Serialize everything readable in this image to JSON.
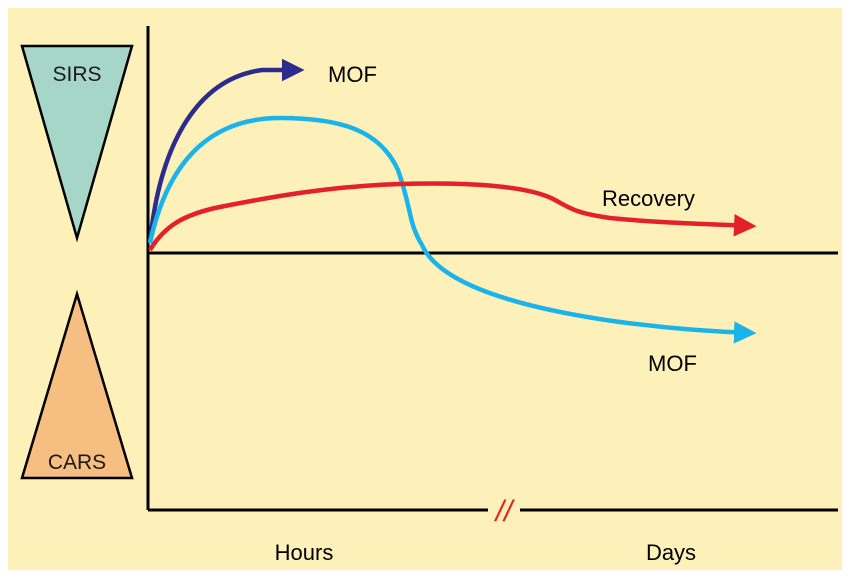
{
  "colors": {
    "background": "#fdf0b8",
    "axis": "#000000",
    "sirs_fill": "#a6d6c8",
    "cars_fill": "#f6be80",
    "curve_dark_blue": "#2c2c8c",
    "curve_light_blue": "#1ab4ea",
    "curve_red": "#e4202a",
    "axis_break": "#e4202a"
  },
  "labels": {
    "sirs": "SIRS",
    "cars": "CARS",
    "mof_top": "MOF",
    "recovery": "Recovery",
    "mof_bottom": "MOF",
    "x_hours": "Hours",
    "x_days": "Days",
    "axis_break": "//"
  }
}
